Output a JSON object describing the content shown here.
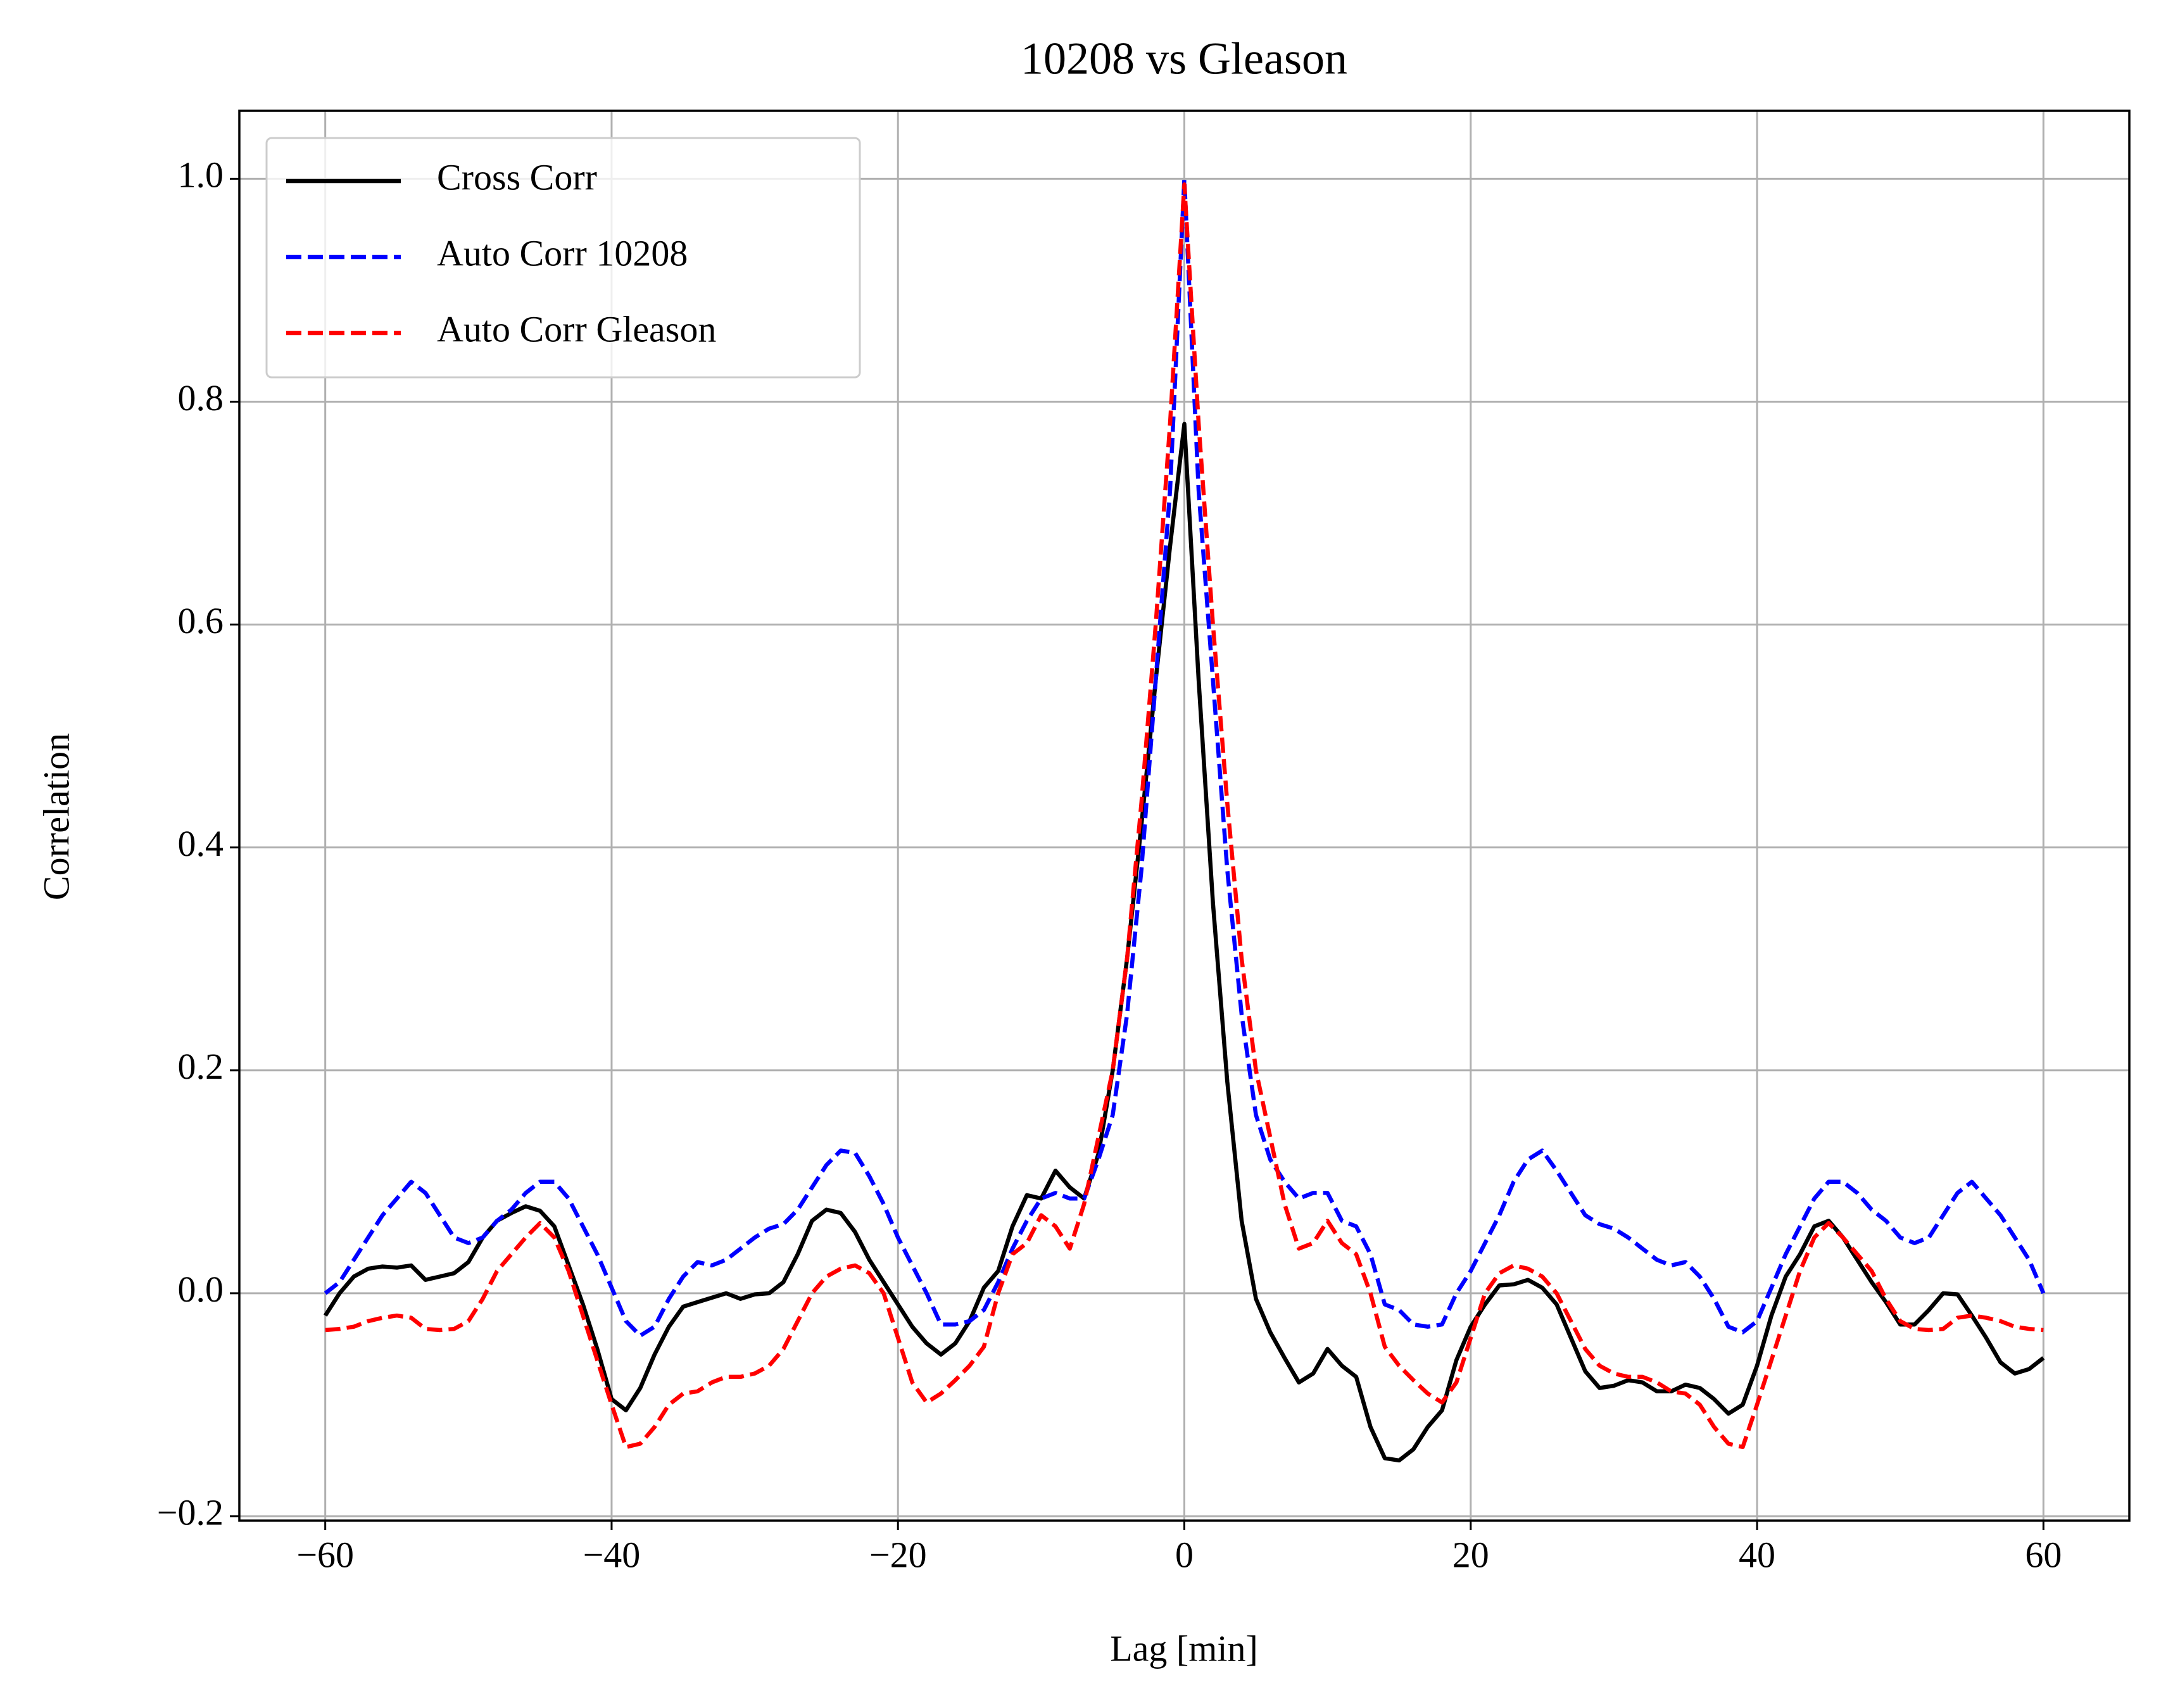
{
  "chart_data": {
    "type": "line",
    "title": "10208 vs Gleason",
    "xlabel": "Lag [min]",
    "ylabel": "Correlation",
    "x": [
      -60,
      -59,
      -58,
      -57,
      -56,
      -55,
      -54,
      -53,
      -52,
      -51,
      -50,
      -49,
      -48,
      -47,
      -46,
      -45,
      -44,
      -43,
      -42,
      -41,
      -40,
      -39,
      -38,
      -37,
      -36,
      -35,
      -34,
      -33,
      -32,
      -31,
      -30,
      -29,
      -28,
      -27,
      -26,
      -25,
      -24,
      -23,
      -22,
      -21,
      -20,
      -19,
      -18,
      -17,
      -16,
      -15,
      -14,
      -13,
      -12,
      -11,
      -10,
      -9,
      -8,
      -7,
      -6,
      -5,
      -4,
      -3,
      -2,
      -1,
      0,
      1,
      2,
      3,
      4,
      5,
      6,
      7,
      8,
      9,
      10,
      11,
      12,
      13,
      14,
      15,
      16,
      17,
      18,
      19,
      20,
      21,
      22,
      23,
      24,
      25,
      26,
      27,
      28,
      29,
      30,
      31,
      32,
      33,
      34,
      35,
      36,
      37,
      38,
      39,
      40,
      41,
      42,
      43,
      44,
      45,
      46,
      47,
      48,
      49,
      50,
      51,
      52,
      53,
      54,
      55,
      56,
      57,
      58,
      59,
      60
    ],
    "series": [
      {
        "name": "Cross Corr",
        "color": "#000000",
        "linestyle": "solid",
        "values": [
          -0.02,
          0.0,
          0.015,
          0.022,
          0.024,
          0.023,
          0.025,
          0.012,
          0.015,
          0.018,
          0.028,
          0.05,
          0.065,
          0.072,
          0.078,
          0.074,
          0.06,
          0.025,
          -0.01,
          -0.05,
          -0.095,
          -0.105,
          -0.085,
          -0.055,
          -0.03,
          -0.012,
          -0.008,
          -0.004,
          0.0,
          -0.005,
          -0.001,
          0.0,
          0.01,
          0.035,
          0.065,
          0.075,
          0.072,
          0.055,
          0.03,
          0.01,
          -0.01,
          -0.03,
          -0.045,
          -0.055,
          -0.045,
          -0.025,
          0.005,
          0.02,
          0.06,
          0.088,
          0.085,
          0.11,
          0.095,
          0.085,
          0.125,
          0.2,
          0.3,
          0.42,
          0.55,
          0.67,
          0.78,
          0.55,
          0.35,
          0.19,
          0.065,
          -0.005,
          -0.035,
          -0.058,
          -0.08,
          -0.072,
          -0.05,
          -0.065,
          -0.075,
          -0.12,
          -0.148,
          -0.15,
          -0.14,
          -0.12,
          -0.105,
          -0.06,
          -0.03,
          -0.01,
          0.007,
          0.008,
          0.012,
          0.005,
          -0.01,
          -0.04,
          -0.07,
          -0.085,
          -0.083,
          -0.078,
          -0.08,
          -0.088,
          -0.088,
          -0.082,
          -0.085,
          -0.095,
          -0.108,
          -0.1,
          -0.065,
          -0.02,
          0.015,
          0.035,
          0.06,
          0.065,
          0.05,
          0.03,
          0.01,
          -0.008,
          -0.028,
          -0.028,
          -0.015,
          0.0,
          -0.001,
          -0.02,
          -0.04,
          -0.062,
          -0.072,
          -0.068,
          -0.058
        ]
      },
      {
        "name": "Auto Corr 10208",
        "color": "#0000ff",
        "linestyle": "dashed",
        "values": [
          0.0,
          0.01,
          0.03,
          0.05,
          0.07,
          0.085,
          0.1,
          0.09,
          0.07,
          0.05,
          0.045,
          0.05,
          0.065,
          0.075,
          0.09,
          0.1,
          0.1,
          0.085,
          0.06,
          0.035,
          0.005,
          -0.025,
          -0.038,
          -0.03,
          -0.005,
          0.015,
          0.028,
          0.025,
          0.03,
          0.04,
          0.05,
          0.058,
          0.062,
          0.075,
          0.095,
          0.115,
          0.128,
          0.126,
          0.105,
          0.08,
          0.05,
          0.025,
          0.0,
          -0.028,
          -0.028,
          -0.025,
          -0.015,
          0.01,
          0.04,
          0.065,
          0.085,
          0.09,
          0.085,
          0.085,
          0.12,
          0.16,
          0.25,
          0.38,
          0.55,
          0.72,
          1.0,
          0.72,
          0.55,
          0.38,
          0.25,
          0.16,
          0.12,
          0.1,
          0.085,
          0.09,
          0.09,
          0.065,
          0.06,
          0.035,
          -0.01,
          -0.015,
          -0.028,
          -0.03,
          -0.028,
          0.0,
          0.02,
          0.045,
          0.07,
          0.1,
          0.12,
          0.128,
          0.11,
          0.09,
          0.07,
          0.062,
          0.058,
          0.05,
          0.04,
          0.03,
          0.025,
          0.028,
          0.015,
          -0.005,
          -0.03,
          -0.035,
          -0.025,
          0.005,
          0.035,
          0.06,
          0.085,
          0.1,
          0.1,
          0.09,
          0.075,
          0.065,
          0.05,
          0.045,
          0.05,
          0.07,
          0.09,
          0.1,
          0.085,
          0.07,
          0.05,
          0.03,
          0.0
        ]
      },
      {
        "name": "Auto Corr Gleason",
        "color": "#ff0000",
        "linestyle": "dashed",
        "values": [
          -0.033,
          -0.032,
          -0.03,
          -0.025,
          -0.022,
          -0.02,
          -0.022,
          -0.032,
          -0.033,
          -0.032,
          -0.025,
          -0.005,
          0.02,
          0.035,
          0.05,
          0.063,
          0.05,
          0.02,
          -0.02,
          -0.06,
          -0.1,
          -0.138,
          -0.135,
          -0.12,
          -0.1,
          -0.09,
          -0.088,
          -0.08,
          -0.075,
          -0.075,
          -0.072,
          -0.065,
          -0.05,
          -0.025,
          0.0,
          0.015,
          0.022,
          0.025,
          0.018,
          0.0,
          -0.04,
          -0.08,
          -0.098,
          -0.09,
          -0.078,
          -0.065,
          -0.048,
          0.0,
          0.035,
          0.045,
          0.07,
          0.06,
          0.04,
          0.08,
          0.14,
          0.2,
          0.3,
          0.44,
          0.6,
          0.78,
          0.995,
          0.78,
          0.6,
          0.44,
          0.3,
          0.2,
          0.14,
          0.08,
          0.04,
          0.045,
          0.065,
          0.045,
          0.035,
          0.0,
          -0.048,
          -0.065,
          -0.078,
          -0.09,
          -0.098,
          -0.08,
          -0.04,
          0.0,
          0.018,
          0.025,
          0.022,
          0.015,
          0.0,
          -0.025,
          -0.05,
          -0.065,
          -0.072,
          -0.075,
          -0.075,
          -0.08,
          -0.088,
          -0.09,
          -0.1,
          -0.12,
          -0.135,
          -0.138,
          -0.1,
          -0.06,
          -0.02,
          0.02,
          0.05,
          0.063,
          0.05,
          0.035,
          0.02,
          -0.005,
          -0.025,
          -0.032,
          -0.033,
          -0.032,
          -0.022,
          -0.02,
          -0.022,
          -0.025,
          -0.03,
          -0.032,
          -0.033
        ]
      }
    ],
    "xlim": [
      -66,
      66
    ],
    "ylim": [
      -0.204,
      1.061
    ],
    "xticks": [
      {
        "value": -60,
        "label": "−60"
      },
      {
        "value": -40,
        "label": "−40"
      },
      {
        "value": -20,
        "label": "−20"
      },
      0,
      20,
      40,
      60
    ],
    "yticks": [
      {
        "value": -0.2,
        "label": "−0.2"
      },
      {
        "value": 0,
        "label": "0.0"
      },
      0.2,
      0.4,
      0.6,
      0.8,
      {
        "value": 1,
        "label": "1.0"
      }
    ],
    "grid": true,
    "legend": "upper left"
  }
}
